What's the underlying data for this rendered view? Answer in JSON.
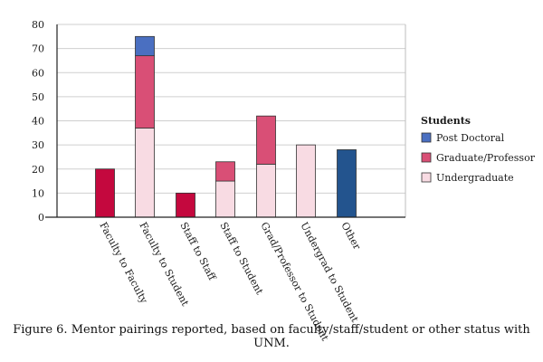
{
  "caption": "Figure 6. Mentor pairings reported, based on faculty/staff/student or other status with UNM.",
  "chart_data": {
    "type": "bar",
    "stacked": true,
    "categories": [
      "Faculty to Faculty",
      "Faculty to Student",
      "Staff to Staff",
      "Staff to Student",
      "Grad/Professor to Student",
      "Undergrad to Student",
      "Other"
    ],
    "y_ticks": [
      "0",
      "10",
      "20",
      "30",
      "40",
      "50",
      "60",
      "70",
      "80"
    ],
    "ylim": [
      0,
      80
    ],
    "grid": true,
    "legend": {
      "title": "Students",
      "placement": "right",
      "entries": [
        {
          "label": "Post Doctoral",
          "color": "#4a6fc1"
        },
        {
          "label": "Graduate/Professor",
          "color": "#d94f76"
        },
        {
          "label": "Undergraduate",
          "color": "#f8dbe3"
        }
      ]
    },
    "bars": [
      {
        "category": "Faculty to Faculty",
        "segments": [
          {
            "value": 20,
            "color": "#c4083e"
          }
        ]
      },
      {
        "category": "Faculty to Student",
        "segments": [
          {
            "value": 37,
            "color": "#f8dbe3"
          },
          {
            "value": 30,
            "color": "#d94f76"
          },
          {
            "value": 8,
            "color": "#4a6fc1"
          }
        ]
      },
      {
        "category": "Staff to Staff",
        "segments": [
          {
            "value": 10,
            "color": "#c4083e"
          }
        ]
      },
      {
        "category": "Staff to Student",
        "segments": [
          {
            "value": 15,
            "color": "#f8dbe3"
          },
          {
            "value": 8,
            "color": "#d94f76"
          }
        ]
      },
      {
        "category": "Grad/Professor to Student",
        "segments": [
          {
            "value": 22,
            "color": "#f8dbe3"
          },
          {
            "value": 20,
            "color": "#d94f76"
          }
        ]
      },
      {
        "category": "Undergrad to Student",
        "segments": [
          {
            "value": 30,
            "color": "#f8dbe3"
          }
        ]
      },
      {
        "category": "Other",
        "segments": [
          {
            "value": 28,
            "color": "#23548e"
          }
        ]
      }
    ]
  }
}
